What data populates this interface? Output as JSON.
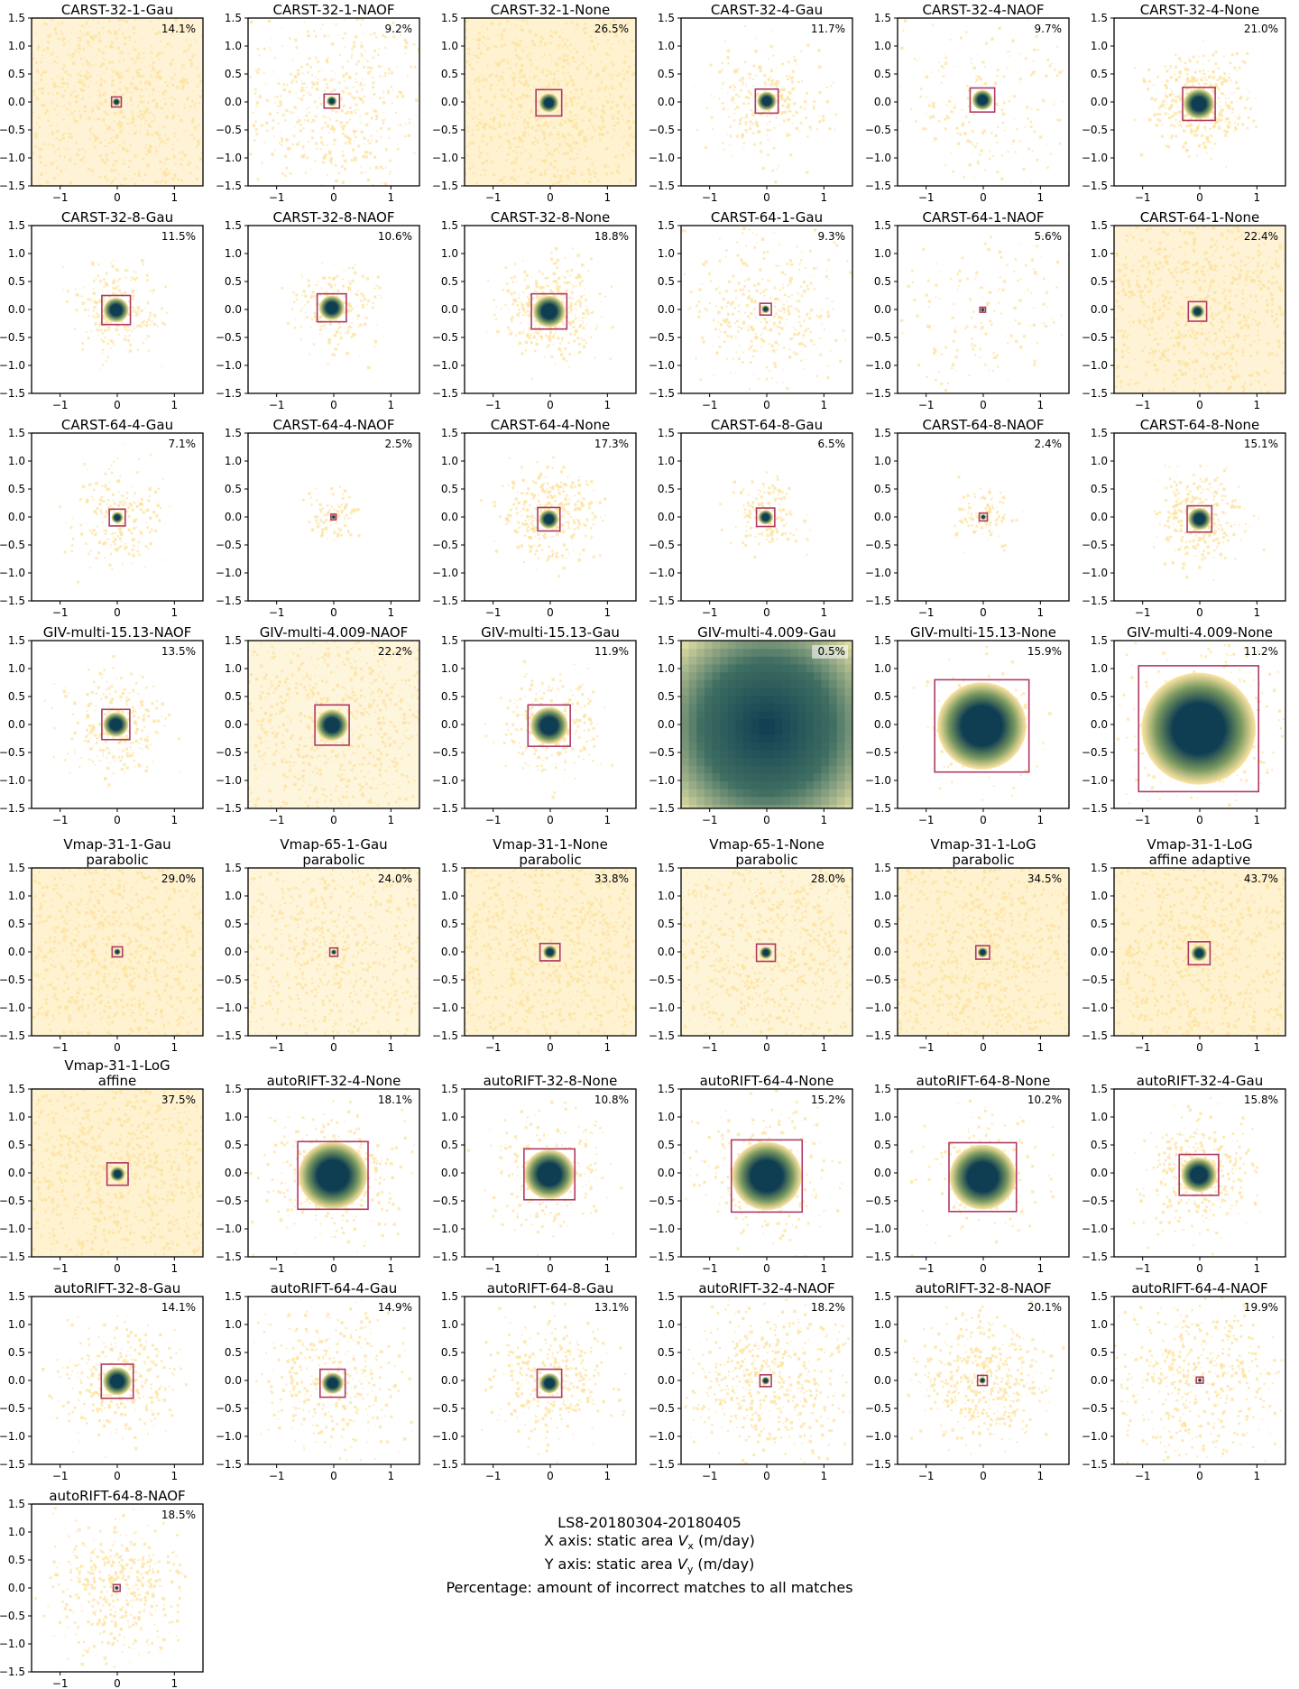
{
  "axis_ticks": {
    "x": [
      {
        "v": -1,
        "label": "−1"
      },
      {
        "v": 0,
        "label": "0"
      },
      {
        "v": 1,
        "label": "1"
      }
    ],
    "y": [
      {
        "v": 1.5,
        "label": "1.5"
      },
      {
        "v": 1.0,
        "label": "1.0"
      },
      {
        "v": 0.5,
        "label": "0.5"
      },
      {
        "v": 0.0,
        "label": "0.0"
      },
      {
        "v": -0.5,
        "label": "−0.5"
      },
      {
        "v": -1.0,
        "label": "−1.0"
      },
      {
        "v": -1.5,
        "label": "−1.5"
      }
    ]
  },
  "colors": {
    "scatter": "#fde29a",
    "density_core": "#0f3d52",
    "density_mid": "#7b9a60",
    "box": "#b03a64"
  },
  "caption": {
    "line1": "LS8-20180304-20180405",
    "line2_prefix": "X axis: static area ",
    "line2_var": "V",
    "line2_sub": "x",
    "line2_suffix": " (m/day)",
    "line3_prefix": "Y axis: static area ",
    "line3_var": "V",
    "line3_sub": "y",
    "line3_suffix": " (m/day)",
    "line4": "Percentage: amount of incorrect matches to all matches"
  },
  "chart_data": [
    {
      "type": "scatter",
      "title": "CARST-32-1-Gau",
      "percentage": "14.1%",
      "xlim": [
        -1.5,
        1.5
      ],
      "ylim": [
        -1.5,
        1.5
      ],
      "box": [
        -0.1,
        -0.09,
        0.07,
        0.09
      ],
      "core_radius": 0.07,
      "spread": 1.5,
      "density": 0.9
    },
    {
      "type": "scatter",
      "title": "CARST-32-1-NAOF",
      "percentage": "9.2%",
      "xlim": [
        -1.5,
        1.5
      ],
      "ylim": [
        -1.5,
        1.5
      ],
      "box": [
        -0.17,
        -0.11,
        0.1,
        0.14
      ],
      "core_radius": 0.09,
      "spread": 1.5,
      "density": 0.55
    },
    {
      "type": "scatter",
      "title": "CARST-32-1-None",
      "percentage": "26.5%",
      "xlim": [
        -1.5,
        1.5
      ],
      "ylim": [
        -1.5,
        1.5
      ],
      "box": [
        -0.25,
        -0.25,
        0.2,
        0.22
      ],
      "core_radius": 0.17,
      "spread": 1.5,
      "density": 1.0
    },
    {
      "type": "scatter",
      "title": "CARST-32-4-Gau",
      "percentage": "11.7%",
      "xlim": [
        -1.5,
        1.5
      ],
      "ylim": [
        -1.5,
        1.5
      ],
      "box": [
        -0.2,
        -0.2,
        0.2,
        0.23
      ],
      "core_radius": 0.17,
      "spread": 0.9,
      "density": 0.25
    },
    {
      "type": "scatter",
      "title": "CARST-32-4-NAOF",
      "percentage": "9.7%",
      "xlim": [
        -1.5,
        1.5
      ],
      "ylim": [
        -1.5,
        1.5
      ],
      "box": [
        -0.23,
        -0.18,
        0.2,
        0.25
      ],
      "core_radius": 0.18,
      "spread": 1.5,
      "density": 0.2
    },
    {
      "type": "scatter",
      "title": "CARST-32-4-None",
      "percentage": "21.0%",
      "xlim": [
        -1.5,
        1.5
      ],
      "ylim": [
        -1.5,
        1.5
      ],
      "box": [
        -0.3,
        -0.33,
        0.27,
        0.26
      ],
      "core_radius": 0.27,
      "spread": 0.75,
      "density": 0.45
    },
    {
      "type": "scatter",
      "title": "CARST-32-8-Gau",
      "percentage": "11.5%",
      "xlim": [
        -1.5,
        1.5
      ],
      "ylim": [
        -1.5,
        1.5
      ],
      "box": [
        -0.27,
        -0.27,
        0.23,
        0.25
      ],
      "core_radius": 0.22,
      "spread": 0.7,
      "density": 0.22
    },
    {
      "type": "scatter",
      "title": "CARST-32-8-NAOF",
      "percentage": "10.6%",
      "xlim": [
        -1.5,
        1.5
      ],
      "ylim": [
        -1.5,
        1.5
      ],
      "box": [
        -0.29,
        -0.22,
        0.22,
        0.28
      ],
      "core_radius": 0.22,
      "spread": 0.7,
      "density": 0.18
    },
    {
      "type": "scatter",
      "title": "CARST-32-8-None",
      "percentage": "18.8%",
      "xlim": [
        -1.5,
        1.5
      ],
      "ylim": [
        -1.5,
        1.5
      ],
      "box": [
        -0.33,
        -0.35,
        0.29,
        0.28
      ],
      "core_radius": 0.28,
      "spread": 0.75,
      "density": 0.4
    },
    {
      "type": "scatter",
      "title": "CARST-64-1-Gau",
      "percentage": "9.3%",
      "xlim": [
        -1.5,
        1.5
      ],
      "ylim": [
        -1.5,
        1.5
      ],
      "box": [
        -0.12,
        -0.1,
        0.08,
        0.11
      ],
      "core_radius": 0.07,
      "spread": 1.2,
      "density": 0.35
    },
    {
      "type": "scatter",
      "title": "CARST-64-1-NAOF",
      "percentage": "5.6%",
      "xlim": [
        -1.5,
        1.5
      ],
      "ylim": [
        -1.5,
        1.5
      ],
      "box": [
        -0.06,
        -0.05,
        0.04,
        0.04
      ],
      "core_radius": 0.04,
      "spread": 1.3,
      "density": 0.12
    },
    {
      "type": "scatter",
      "title": "CARST-64-1-None",
      "percentage": "22.4%",
      "xlim": [
        -1.5,
        1.5
      ],
      "ylim": [
        -1.5,
        1.5
      ],
      "box": [
        -0.2,
        -0.21,
        0.12,
        0.14
      ],
      "core_radius": 0.12,
      "spread": 1.3,
      "density": 0.9
    },
    {
      "type": "scatter",
      "title": "CARST-64-4-Gau",
      "percentage": "7.1%",
      "xlim": [
        -1.5,
        1.5
      ],
      "ylim": [
        -1.5,
        1.5
      ],
      "box": [
        -0.14,
        -0.16,
        0.14,
        0.14
      ],
      "core_radius": 0.1,
      "spread": 0.8,
      "density": 0.18
    },
    {
      "type": "scatter",
      "title": "CARST-64-4-NAOF",
      "percentage": "2.5%",
      "xlim": [
        -1.5,
        1.5
      ],
      "ylim": [
        -1.5,
        1.5
      ],
      "box": [
        -0.05,
        -0.05,
        0.04,
        0.05
      ],
      "core_radius": 0.04,
      "spread": 0.4,
      "density": 0.05
    },
    {
      "type": "scatter",
      "title": "CARST-64-4-None",
      "percentage": "17.3%",
      "xlim": [
        -1.5,
        1.5
      ],
      "ylim": [
        -1.5,
        1.5
      ],
      "box": [
        -0.22,
        -0.25,
        0.17,
        0.17
      ],
      "core_radius": 0.17,
      "spread": 0.75,
      "density": 0.35
    },
    {
      "type": "scatter",
      "title": "CARST-64-8-Gau",
      "percentage": "6.5%",
      "xlim": [
        -1.5,
        1.5
      ],
      "ylim": [
        -1.5,
        1.5
      ],
      "box": [
        -0.18,
        -0.17,
        0.14,
        0.16
      ],
      "core_radius": 0.13,
      "spread": 0.6,
      "density": 0.12
    },
    {
      "type": "scatter",
      "title": "CARST-64-8-NAOF",
      "percentage": "2.4%",
      "xlim": [
        -1.5,
        1.5
      ],
      "ylim": [
        -1.5,
        1.5
      ],
      "box": [
        -0.07,
        -0.07,
        0.07,
        0.07
      ],
      "core_radius": 0.05,
      "spread": 0.5,
      "density": 0.05
    },
    {
      "type": "scatter",
      "title": "CARST-64-8-None",
      "percentage": "15.1%",
      "xlim": [
        -1.5,
        1.5
      ],
      "ylim": [
        -1.5,
        1.5
      ],
      "box": [
        -0.22,
        -0.27,
        0.21,
        0.2
      ],
      "core_radius": 0.2,
      "spread": 0.7,
      "density": 0.3
    },
    {
      "type": "scatter",
      "title": "GIV-multi-15.13-NAOF",
      "percentage": "13.5%",
      "xlim": [
        -1.5,
        1.5
      ],
      "ylim": [
        -1.5,
        1.5
      ],
      "box": [
        -0.27,
        -0.27,
        0.22,
        0.27
      ],
      "core_radius": 0.22,
      "spread": 0.8,
      "density": 0.25
    },
    {
      "type": "scatter",
      "title": "GIV-multi-4.009-NAOF",
      "percentage": "22.2%",
      "xlim": [
        -1.5,
        1.5
      ],
      "ylim": [
        -1.5,
        1.5
      ],
      "box": [
        -0.33,
        -0.37,
        0.27,
        0.35
      ],
      "core_radius": 0.28,
      "spread": 1.45,
      "density": 0.75
    },
    {
      "type": "scatter",
      "title": "GIV-multi-15.13-Gau",
      "percentage": "11.9%",
      "xlim": [
        -1.5,
        1.5
      ],
      "ylim": [
        -1.5,
        1.5
      ],
      "box": [
        -0.39,
        -0.39,
        0.35,
        0.35
      ],
      "core_radius": 0.33,
      "spread": 0.8,
      "density": 0.25
    },
    {
      "type": "scatter",
      "title": "GIV-multi-4.009-Gau",
      "percentage": "0.5%",
      "xlim": [
        -1.5,
        1.5
      ],
      "ylim": [
        -1.5,
        1.5
      ],
      "box": [
        -1.6,
        -1.6,
        1.6,
        1.6
      ],
      "core_radius": 1.5,
      "spread": 0.1,
      "density": 0.0,
      "pixelated": true
    },
    {
      "type": "scatter",
      "title": "GIV-multi-15.13-None",
      "percentage": "15.9%",
      "xlim": [
        -1.5,
        1.5
      ],
      "ylim": [
        -1.5,
        1.5
      ],
      "box": [
        -0.85,
        -0.85,
        0.8,
        0.8
      ],
      "core_radius": 0.78,
      "spread": 0.9,
      "density": 0.12
    },
    {
      "type": "scatter",
      "title": "GIV-multi-4.009-None",
      "percentage": "11.2%",
      "xlim": [
        -1.5,
        1.5
      ],
      "ylim": [
        -1.5,
        1.5
      ],
      "box": [
        -1.07,
        -1.2,
        1.03,
        1.05
      ],
      "core_radius": 1.0,
      "spread": 1.45,
      "density": 0.3
    },
    {
      "type": "scatter",
      "title": "Vmap-31-1-Gau",
      "subtitle": "parabolic",
      "percentage": "29.0%",
      "xlim": [
        -1.5,
        1.5
      ],
      "ylim": [
        -1.5,
        1.5
      ],
      "box": [
        -0.09,
        -0.09,
        0.09,
        0.09
      ],
      "core_radius": 0.06,
      "spread": 1.5,
      "density": 1.0
    },
    {
      "type": "scatter",
      "title": "Vmap-65-1-Gau",
      "subtitle": "parabolic",
      "percentage": "24.0%",
      "xlim": [
        -1.5,
        1.5
      ],
      "ylim": [
        -1.5,
        1.5
      ],
      "box": [
        -0.07,
        -0.08,
        0.07,
        0.07
      ],
      "core_radius": 0.05,
      "spread": 1.5,
      "density": 0.8
    },
    {
      "type": "scatter",
      "title": "Vmap-31-1-None",
      "subtitle": "parabolic",
      "percentage": "33.8%",
      "xlim": [
        -1.5,
        1.5
      ],
      "ylim": [
        -1.5,
        1.5
      ],
      "box": [
        -0.18,
        -0.16,
        0.17,
        0.15
      ],
      "core_radius": 0.12,
      "spread": 1.5,
      "density": 1.0
    },
    {
      "type": "scatter",
      "title": "Vmap-65-1-None",
      "subtitle": "parabolic",
      "percentage": "28.0%",
      "xlim": [
        -1.5,
        1.5
      ],
      "ylim": [
        -1.5,
        1.5
      ],
      "box": [
        -0.18,
        -0.17,
        0.15,
        0.14
      ],
      "core_radius": 0.11,
      "spread": 1.4,
      "density": 0.85
    },
    {
      "type": "scatter",
      "title": "Vmap-31-1-LoG",
      "subtitle": "parabolic",
      "percentage": "34.5%",
      "xlim": [
        -1.5,
        1.5
      ],
      "ylim": [
        -1.5,
        1.5
      ],
      "box": [
        -0.13,
        -0.13,
        0.11,
        0.11
      ],
      "core_radius": 0.09,
      "spread": 1.5,
      "density": 1.0
    },
    {
      "type": "scatter",
      "title": "Vmap-31-1-LoG",
      "subtitle": "affine adaptive",
      "percentage": "43.7%",
      "xlim": [
        -1.5,
        1.5
      ],
      "ylim": [
        -1.5,
        1.5
      ],
      "box": [
        -0.2,
        -0.23,
        0.18,
        0.18
      ],
      "core_radius": 0.14,
      "spread": 1.5,
      "density": 1.0
    },
    {
      "type": "scatter",
      "title": "Vmap-31-1-LoG",
      "subtitle": "affine",
      "percentage": "37.5%",
      "xlim": [
        -1.5,
        1.5
      ],
      "ylim": [
        -1.5,
        1.5
      ],
      "box": [
        -0.18,
        -0.22,
        0.19,
        0.18
      ],
      "core_radius": 0.13,
      "spread": 1.5,
      "density": 1.0
    },
    {
      "type": "scatter",
      "title": "autoRIFT-32-4-None",
      "percentage": "18.1%",
      "xlim": [
        -1.5,
        1.5
      ],
      "ylim": [
        -1.5,
        1.5
      ],
      "box": [
        -0.63,
        -0.65,
        0.6,
        0.56
      ],
      "core_radius": 0.6,
      "spread": 1.1,
      "density": 0.3
    },
    {
      "type": "scatter",
      "title": "autoRIFT-32-8-None",
      "percentage": "10.8%",
      "xlim": [
        -1.5,
        1.5
      ],
      "ylim": [
        -1.5,
        1.5
      ],
      "box": [
        -0.46,
        -0.48,
        0.43,
        0.43
      ],
      "core_radius": 0.44,
      "spread": 1.0,
      "density": 0.2
    },
    {
      "type": "scatter",
      "title": "autoRIFT-64-4-None",
      "percentage": "15.2%",
      "xlim": [
        -1.5,
        1.5
      ],
      "ylim": [
        -1.5,
        1.5
      ],
      "box": [
        -0.62,
        -0.7,
        0.62,
        0.59
      ],
      "core_radius": 0.61,
      "spread": 1.1,
      "density": 0.25
    },
    {
      "type": "scatter",
      "title": "autoRIFT-64-8-None",
      "percentage": "10.2%",
      "xlim": [
        -1.5,
        1.5
      ],
      "ylim": [
        -1.5,
        1.5
      ],
      "box": [
        -0.6,
        -0.69,
        0.58,
        0.54
      ],
      "core_radius": 0.58,
      "spread": 1.0,
      "density": 0.15
    },
    {
      "type": "scatter",
      "title": "autoRIFT-32-4-Gau",
      "percentage": "15.8%",
      "xlim": [
        -1.5,
        1.5
      ],
      "ylim": [
        -1.5,
        1.5
      ],
      "box": [
        -0.36,
        -0.4,
        0.33,
        0.33
      ],
      "core_radius": 0.31,
      "spread": 0.9,
      "density": 0.35
    },
    {
      "type": "scatter",
      "title": "autoRIFT-32-8-Gau",
      "percentage": "14.1%",
      "xlim": [
        -1.5,
        1.5
      ],
      "ylim": [
        -1.5,
        1.5
      ],
      "box": [
        -0.28,
        -0.32,
        0.28,
        0.29
      ],
      "core_radius": 0.25,
      "spread": 0.9,
      "density": 0.3
    },
    {
      "type": "scatter",
      "title": "autoRIFT-64-4-Gau",
      "percentage": "14.9%",
      "xlim": [
        -1.5,
        1.5
      ],
      "ylim": [
        -1.5,
        1.5
      ],
      "box": [
        -0.24,
        -0.3,
        0.2,
        0.2
      ],
      "core_radius": 0.19,
      "spread": 1.1,
      "density": 0.35
    },
    {
      "type": "scatter",
      "title": "autoRIFT-64-8-Gau",
      "percentage": "13.1%",
      "xlim": [
        -1.5,
        1.5
      ],
      "ylim": [
        -1.5,
        1.5
      ],
      "box": [
        -0.23,
        -0.3,
        0.2,
        0.2
      ],
      "core_radius": 0.18,
      "spread": 0.9,
      "density": 0.3
    },
    {
      "type": "scatter",
      "title": "autoRIFT-32-4-NAOF",
      "percentage": "18.2%",
      "xlim": [
        -1.5,
        1.5
      ],
      "ylim": [
        -1.5,
        1.5
      ],
      "box": [
        -0.12,
        -0.11,
        0.08,
        0.1
      ],
      "core_radius": 0.07,
      "spread": 1.3,
      "density": 0.55
    },
    {
      "type": "scatter",
      "title": "autoRIFT-32-8-NAOF",
      "percentage": "20.1%",
      "xlim": [
        -1.5,
        1.5
      ],
      "ylim": [
        -1.5,
        1.5
      ],
      "box": [
        -0.1,
        -0.09,
        0.07,
        0.09
      ],
      "core_radius": 0.06,
      "spread": 1.0,
      "density": 0.45
    },
    {
      "type": "scatter",
      "title": "autoRIFT-64-4-NAOF",
      "percentage": "19.9%",
      "xlim": [
        -1.5,
        1.5
      ],
      "ylim": [
        -1.5,
        1.5
      ],
      "box": [
        -0.06,
        -0.05,
        0.06,
        0.06
      ],
      "core_radius": 0.04,
      "spread": 1.4,
      "density": 0.5
    },
    {
      "type": "scatter",
      "title": "autoRIFT-64-8-NAOF",
      "percentage": "18.5%",
      "xlim": [
        -1.5,
        1.5
      ],
      "ylim": [
        -1.5,
        1.5
      ],
      "box": [
        -0.07,
        -0.06,
        0.05,
        0.06
      ],
      "core_radius": 0.04,
      "spread": 1.0,
      "density": 0.45
    }
  ]
}
